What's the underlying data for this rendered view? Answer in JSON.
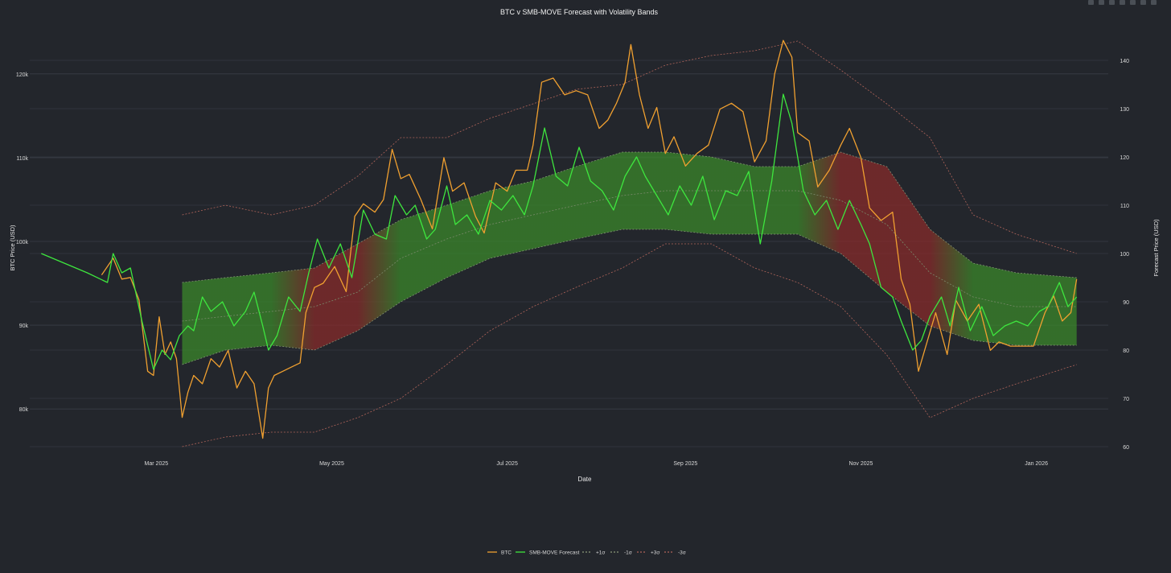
{
  "chart_data": {
    "type": "line",
    "title": "BTC v SMB-MOVE Forecast with Volatility Bands",
    "xlabel": "Date",
    "ylabel_left": "BTC Price (USD)",
    "ylabel_right": "Forecast Price (USD)",
    "x_ticks": [
      "Mar 2025",
      "May 2025",
      "Jul 2025",
      "Sep 2025",
      "Nov 2025",
      "Jan 2026"
    ],
    "y_left_ticks": [
      "80k",
      "90k",
      "100k",
      "110k",
      "120k"
    ],
    "y_right_ticks": [
      "60",
      "70",
      "80",
      "90",
      "100",
      "110",
      "120",
      "130",
      "140"
    ],
    "xlim": [
      "2025-01-16",
      "2026-01-26"
    ],
    "ylim_left": [
      75500,
      124500
    ],
    "ylim_right": [
      60,
      145
    ],
    "legend_position": "bottom-center",
    "legend": [
      "BTC",
      "SMB-MOVE Forecast",
      "+1σ",
      "-1σ",
      "+3σ",
      "-3σ"
    ],
    "colors": {
      "btc": "#f0a030",
      "forecast": "#3ee63e",
      "sigma1": "#8a9a7a",
      "sigma3": "#b0645a",
      "band_green": "#3a8a2a",
      "band_red": "#8a2a2a"
    },
    "series": [
      {
        "name": "BTC",
        "axis": "left",
        "points": [
          [
            "2025-02-10",
            96000
          ],
          [
            "2025-02-14",
            98000
          ],
          [
            "2025-02-17",
            95500
          ],
          [
            "2025-02-20",
            95700
          ],
          [
            "2025-02-23",
            93000
          ],
          [
            "2025-02-26",
            84500
          ],
          [
            "2025-02-28",
            84000
          ],
          [
            "2025-03-02",
            91000
          ],
          [
            "2025-03-04",
            86500
          ],
          [
            "2025-03-06",
            88000
          ],
          [
            "2025-03-08",
            86000
          ],
          [
            "2025-03-10",
            79000
          ],
          [
            "2025-03-12",
            82000
          ],
          [
            "2025-03-14",
            84000
          ],
          [
            "2025-03-17",
            83000
          ],
          [
            "2025-03-20",
            86000
          ],
          [
            "2025-03-23",
            85000
          ],
          [
            "2025-03-26",
            87000
          ],
          [
            "2025-03-29",
            82500
          ],
          [
            "2025-04-01",
            84500
          ],
          [
            "2025-04-04",
            83000
          ],
          [
            "2025-04-07",
            76500
          ],
          [
            "2025-04-09",
            82500
          ],
          [
            "2025-04-11",
            84000
          ],
          [
            "2025-04-14",
            84500
          ],
          [
            "2025-04-17",
            85000
          ],
          [
            "2025-04-20",
            85500
          ],
          [
            "2025-04-22",
            91500
          ],
          [
            "2025-04-25",
            94500
          ],
          [
            "2025-04-28",
            95000
          ],
          [
            "2025-05-02",
            97000
          ],
          [
            "2025-05-06",
            94000
          ],
          [
            "2025-05-09",
            103000
          ],
          [
            "2025-05-12",
            104500
          ],
          [
            "2025-05-16",
            103500
          ],
          [
            "2025-05-19",
            105000
          ],
          [
            "2025-05-22",
            111000
          ],
          [
            "2025-05-25",
            107500
          ],
          [
            "2025-05-28",
            108000
          ],
          [
            "2025-06-01",
            105000
          ],
          [
            "2025-06-05",
            101500
          ],
          [
            "2025-06-09",
            110000
          ],
          [
            "2025-06-12",
            106000
          ],
          [
            "2025-06-16",
            107000
          ],
          [
            "2025-06-20",
            103000
          ],
          [
            "2025-06-23",
            101000
          ],
          [
            "2025-06-27",
            107000
          ],
          [
            "2025-07-01",
            106000
          ],
          [
            "2025-07-04",
            108500
          ],
          [
            "2025-07-08",
            108500
          ],
          [
            "2025-07-10",
            111500
          ],
          [
            "2025-07-13",
            119000
          ],
          [
            "2025-07-17",
            119500
          ],
          [
            "2025-07-21",
            117500
          ],
          [
            "2025-07-25",
            118000
          ],
          [
            "2025-07-29",
            117500
          ],
          [
            "2025-08-02",
            113500
          ],
          [
            "2025-08-05",
            114500
          ],
          [
            "2025-08-08",
            116500
          ],
          [
            "2025-08-11",
            119000
          ],
          [
            "2025-08-13",
            123500
          ],
          [
            "2025-08-16",
            117500
          ],
          [
            "2025-08-19",
            113500
          ],
          [
            "2025-08-22",
            116000
          ],
          [
            "2025-08-25",
            110500
          ],
          [
            "2025-08-28",
            112500
          ],
          [
            "2025-09-01",
            109000
          ],
          [
            "2025-09-05",
            110500
          ],
          [
            "2025-09-09",
            111500
          ],
          [
            "2025-09-13",
            115800
          ],
          [
            "2025-09-17",
            116500
          ],
          [
            "2025-09-21",
            115500
          ],
          [
            "2025-09-25",
            109500
          ],
          [
            "2025-09-29",
            112000
          ],
          [
            "2025-10-02",
            120000
          ],
          [
            "2025-10-05",
            124000
          ],
          [
            "2025-10-08",
            122000
          ],
          [
            "2025-10-10",
            113000
          ],
          [
            "2025-10-14",
            112000
          ],
          [
            "2025-10-17",
            106500
          ],
          [
            "2025-10-21",
            108500
          ],
          [
            "2025-10-25",
            111500
          ],
          [
            "2025-10-28",
            113500
          ],
          [
            "2025-11-01",
            110000
          ],
          [
            "2025-11-04",
            104000
          ],
          [
            "2025-11-08",
            102500
          ],
          [
            "2025-11-12",
            103500
          ],
          [
            "2025-11-15",
            95500
          ],
          [
            "2025-11-18",
            92500
          ],
          [
            "2025-11-21",
            84500
          ],
          [
            "2025-11-24",
            88000
          ],
          [
            "2025-11-27",
            91500
          ],
          [
            "2025-12-01",
            86500
          ],
          [
            "2025-12-04",
            93000
          ],
          [
            "2025-12-08",
            90500
          ],
          [
            "2025-12-12",
            92500
          ],
          [
            "2025-12-16",
            87000
          ],
          [
            "2025-12-19",
            88000
          ],
          [
            "2025-12-23",
            87500
          ],
          [
            "2025-12-27",
            87500
          ],
          [
            "2025-12-31",
            87500
          ],
          [
            "2026-01-04",
            91500
          ],
          [
            "2026-01-07",
            93500
          ],
          [
            "2026-01-10",
            90500
          ],
          [
            "2026-01-13",
            91500
          ],
          [
            "2026-01-15",
            95500
          ]
        ]
      },
      {
        "name": "SMB-MOVE Forecast",
        "axis": "right",
        "points": [
          [
            "2025-01-20",
            100
          ],
          [
            "2025-02-05",
            96
          ],
          [
            "2025-02-12",
            94
          ],
          [
            "2025-02-14",
            100
          ],
          [
            "2025-02-17",
            96
          ],
          [
            "2025-02-20",
            97
          ],
          [
            "2025-02-24",
            86
          ],
          [
            "2025-02-28",
            76
          ],
          [
            "2025-03-03",
            80
          ],
          [
            "2025-03-06",
            78
          ],
          [
            "2025-03-09",
            83
          ],
          [
            "2025-03-12",
            85
          ],
          [
            "2025-03-14",
            84
          ],
          [
            "2025-03-17",
            91
          ],
          [
            "2025-03-20",
            88
          ],
          [
            "2025-03-24",
            90
          ],
          [
            "2025-03-28",
            85
          ],
          [
            "2025-04-01",
            88
          ],
          [
            "2025-04-04",
            92
          ],
          [
            "2025-04-07",
            85
          ],
          [
            "2025-04-09",
            80
          ],
          [
            "2025-04-12",
            83
          ],
          [
            "2025-04-16",
            91
          ],
          [
            "2025-04-20",
            88
          ],
          [
            "2025-04-23",
            96
          ],
          [
            "2025-04-26",
            103
          ],
          [
            "2025-04-30",
            97
          ],
          [
            "2025-05-04",
            102
          ],
          [
            "2025-05-08",
            95
          ],
          [
            "2025-05-12",
            109
          ],
          [
            "2025-05-16",
            104
          ],
          [
            "2025-05-20",
            103
          ],
          [
            "2025-05-23",
            112
          ],
          [
            "2025-05-27",
            108
          ],
          [
            "2025-05-30",
            110
          ],
          [
            "2025-06-03",
            103
          ],
          [
            "2025-06-06",
            105
          ],
          [
            "2025-06-10",
            114
          ],
          [
            "2025-06-13",
            106
          ],
          [
            "2025-06-17",
            108
          ],
          [
            "2025-06-21",
            104
          ],
          [
            "2025-06-25",
            111
          ],
          [
            "2025-06-29",
            109
          ],
          [
            "2025-07-03",
            112
          ],
          [
            "2025-07-07",
            108
          ],
          [
            "2025-07-10",
            114
          ],
          [
            "2025-07-14",
            126
          ],
          [
            "2025-07-18",
            116
          ],
          [
            "2025-07-22",
            114
          ],
          [
            "2025-07-26",
            122
          ],
          [
            "2025-07-30",
            115
          ],
          [
            "2025-08-03",
            113
          ],
          [
            "2025-08-07",
            109
          ],
          [
            "2025-08-11",
            116
          ],
          [
            "2025-08-15",
            120
          ],
          [
            "2025-08-18",
            116
          ],
          [
            "2025-08-22",
            112
          ],
          [
            "2025-08-26",
            108
          ],
          [
            "2025-08-30",
            114
          ],
          [
            "2025-09-03",
            110
          ],
          [
            "2025-09-07",
            116
          ],
          [
            "2025-09-11",
            107
          ],
          [
            "2025-09-15",
            113
          ],
          [
            "2025-09-19",
            112
          ],
          [
            "2025-09-23",
            117
          ],
          [
            "2025-09-27",
            102
          ],
          [
            "2025-10-01",
            115
          ],
          [
            "2025-10-05",
            133
          ],
          [
            "2025-10-08",
            127
          ],
          [
            "2025-10-12",
            113
          ],
          [
            "2025-10-16",
            108
          ],
          [
            "2025-10-20",
            111
          ],
          [
            "2025-10-24",
            105
          ],
          [
            "2025-10-28",
            111
          ],
          [
            "2025-11-01",
            106
          ],
          [
            "2025-11-04",
            102
          ],
          [
            "2025-11-08",
            93
          ],
          [
            "2025-11-12",
            91
          ],
          [
            "2025-11-15",
            86
          ],
          [
            "2025-11-19",
            80
          ],
          [
            "2025-11-22",
            82
          ],
          [
            "2025-11-25",
            87
          ],
          [
            "2025-11-29",
            91
          ],
          [
            "2025-12-02",
            85
          ],
          [
            "2025-12-05",
            93
          ],
          [
            "2025-12-09",
            84
          ],
          [
            "2025-12-13",
            89
          ],
          [
            "2025-12-17",
            83
          ],
          [
            "2025-12-21",
            85
          ],
          [
            "2025-12-25",
            86
          ],
          [
            "2025-12-29",
            85
          ],
          [
            "2026-01-02",
            88
          ],
          [
            "2026-01-05",
            89
          ],
          [
            "2026-01-09",
            94
          ],
          [
            "2026-01-12",
            89
          ],
          [
            "2026-01-15",
            91
          ]
        ]
      }
    ],
    "bands": {
      "axis": "right",
      "dates": [
        "2025-03-10",
        "2025-03-25",
        "2025-04-10",
        "2025-04-25",
        "2025-05-10",
        "2025-05-25",
        "2025-06-10",
        "2025-06-25",
        "2025-07-10",
        "2025-07-25",
        "2025-08-10",
        "2025-08-25",
        "2025-09-10",
        "2025-09-25",
        "2025-10-10",
        "2025-10-25",
        "2025-11-10",
        "2025-11-25",
        "2025-12-10",
        "2025-12-25",
        "2026-01-15"
      ],
      "mid": [
        86,
        87,
        88,
        89,
        92,
        99,
        103,
        106,
        108,
        110,
        112,
        113,
        113,
        113,
        113,
        111,
        106,
        96,
        91,
        89,
        89
      ],
      "plus1": [
        94,
        95,
        96,
        97,
        102,
        107,
        110,
        113,
        115,
        118,
        121,
        121,
        120,
        118,
        118,
        121,
        118,
        105,
        98,
        96,
        95
      ],
      "minus1": [
        77,
        80,
        81,
        80,
        84,
        90,
        95,
        99,
        101,
        103,
        105,
        105,
        104,
        104,
        104,
        100,
        92,
        85,
        82,
        81,
        81
      ],
      "plus3": [
        108,
        110,
        108,
        110,
        116,
        124,
        124,
        128,
        131,
        134,
        135,
        139,
        141,
        142,
        144,
        138,
        131,
        124,
        108,
        104,
        100
      ],
      "minus3": [
        60,
        62,
        63,
        63,
        66,
        70,
        77,
        84,
        89,
        93,
        97,
        102,
        102,
        97,
        94,
        89,
        79,
        66,
        70,
        73,
        77
      ],
      "band_tone": [
        "green",
        "green",
        "green",
        "red",
        "red",
        "green",
        "green",
        "green",
        "green",
        "green",
        "green",
        "green",
        "green",
        "green",
        "green",
        "red",
        "red",
        "red",
        "green",
        "green",
        "green"
      ]
    }
  }
}
